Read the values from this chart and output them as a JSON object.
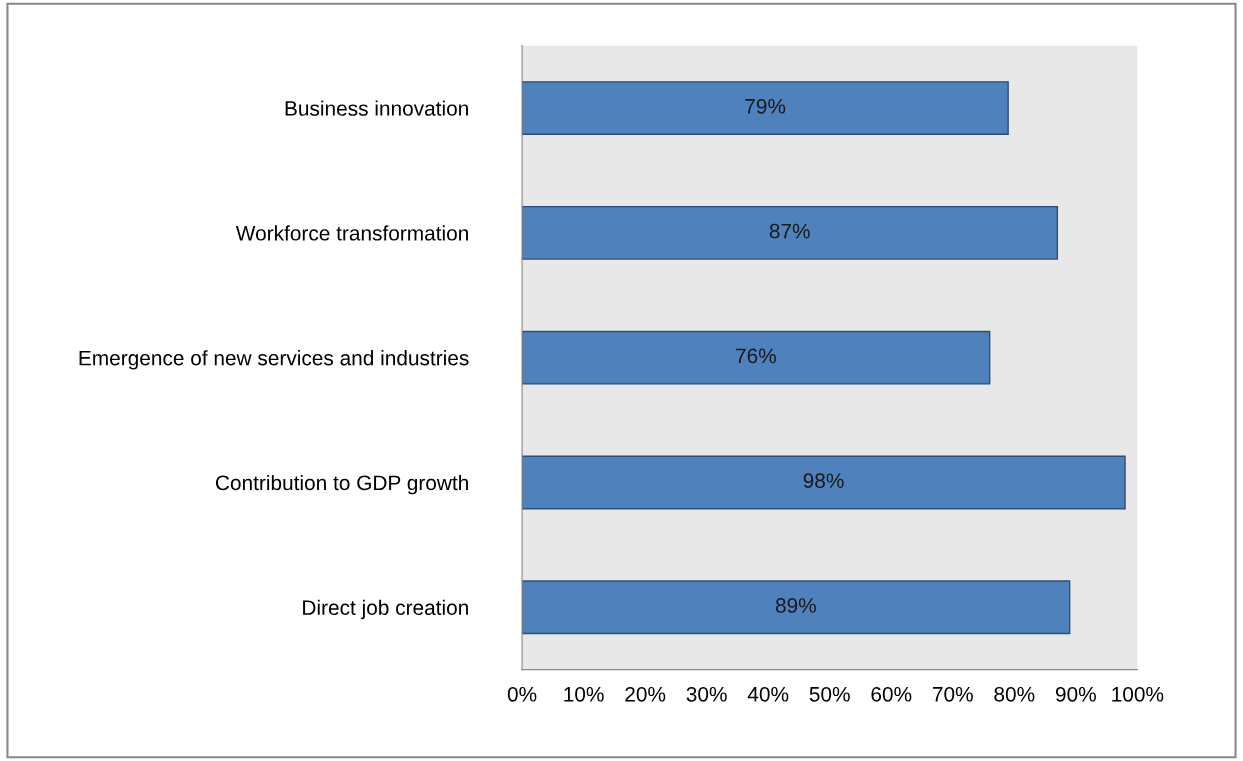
{
  "chart_data": {
    "type": "bar",
    "orientation": "horizontal",
    "categories": [
      "Business innovation",
      "Workforce transformation",
      "Emergence of new services and industries",
      "Contribution to GDP growth",
      "Direct job creation"
    ],
    "values": [
      79,
      87,
      76,
      98,
      89
    ],
    "value_labels": [
      "79%",
      "87%",
      "76%",
      "98%",
      "89%"
    ],
    "color": "#4f81bd",
    "xlim": [
      0,
      100
    ],
    "xticks": [
      {
        "value": 0,
        "label": "0%"
      },
      {
        "value": 10,
        "label": "10%"
      },
      {
        "value": 20,
        "label": "20%"
      },
      {
        "value": 30,
        "label": "30%"
      },
      {
        "value": 40,
        "label": "40%"
      },
      {
        "value": 50,
        "label": "50%"
      },
      {
        "value": 60,
        "label": "60%"
      },
      {
        "value": 70,
        "label": "70%"
      },
      {
        "value": 80,
        "label": "80%"
      },
      {
        "value": 90,
        "label": "90%"
      },
      {
        "value": 100,
        "label": "100%"
      }
    ],
    "grid": false,
    "legend": false
  }
}
